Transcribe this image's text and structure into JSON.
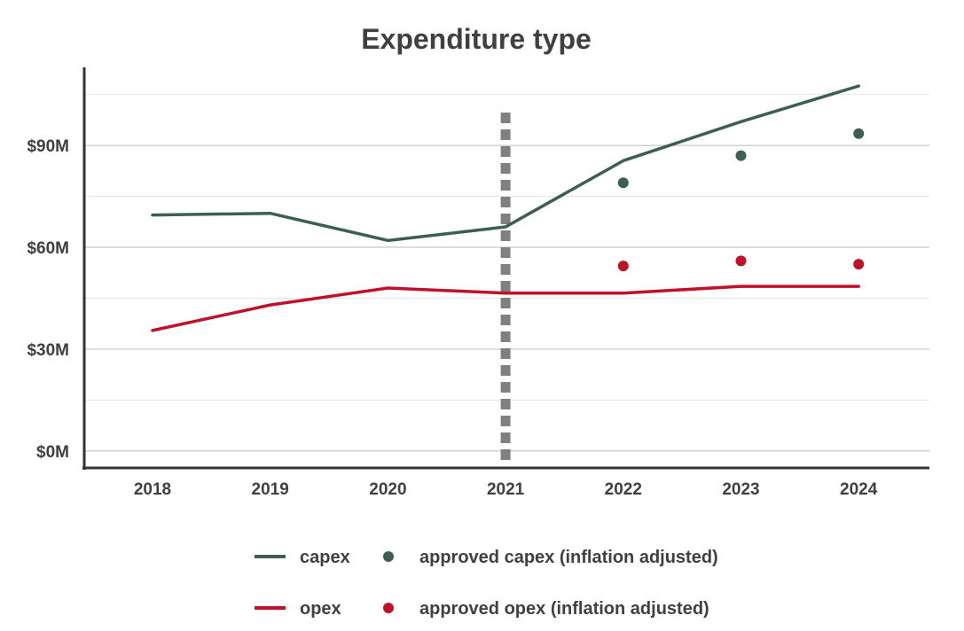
{
  "chart_data": {
    "type": "line",
    "title": "Expenditure type",
    "xlabel": "",
    "ylabel": "",
    "categories": [
      "2018",
      "2019",
      "2020",
      "2021",
      "2022",
      "2023",
      "2024"
    ],
    "ylim": [
      -5,
      113
    ],
    "yticks": [
      0,
      30,
      60,
      90
    ],
    "ytick_labels": [
      "$0M",
      "$30M",
      "$60M",
      "$90M"
    ],
    "minor_gridlines": [
      15,
      45,
      75,
      105
    ],
    "vertical_marker": {
      "category": "2021",
      "style": "dashed"
    },
    "grid": true,
    "legend_position": "bottom",
    "series": [
      {
        "name": "capex",
        "kind": "line",
        "color": "#3d5e55",
        "values": [
          69.5,
          70,
          62,
          66,
          85.5,
          97,
          107.5
        ]
      },
      {
        "name": "opex",
        "kind": "line",
        "color": "#c0112b",
        "values": [
          35.5,
          43,
          48,
          46.5,
          46.5,
          48.5,
          48.5
        ]
      },
      {
        "name": "approved capex (inflation adjusted)",
        "kind": "scatter",
        "color": "#3d5e55",
        "values": [
          null,
          null,
          null,
          null,
          79,
          87,
          93.5
        ]
      },
      {
        "name": "approved opex (inflation adjusted)",
        "kind": "scatter",
        "color": "#c0112b",
        "values": [
          null,
          null,
          null,
          null,
          54.5,
          56,
          55
        ]
      }
    ]
  }
}
